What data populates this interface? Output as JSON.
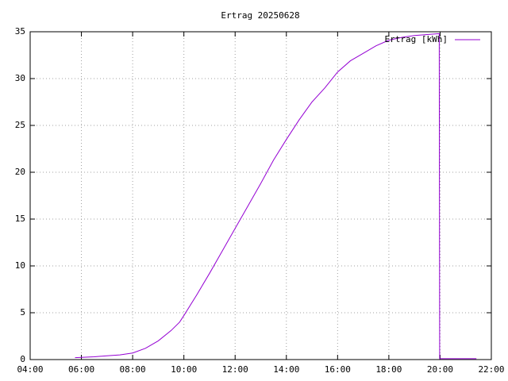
{
  "chart_data": {
    "type": "line",
    "title": "Ertrag 20250628",
    "x": [
      "05:45",
      "06:30",
      "07:00",
      "07:30",
      "08:00",
      "08:30",
      "09:00",
      "09:30",
      "09:50",
      "10:00",
      "10:30",
      "11:00",
      "11:30",
      "12:00",
      "12:30",
      "13:00",
      "13:30",
      "14:00",
      "14:30",
      "15:00",
      "15:30",
      "16:00",
      "16:30",
      "17:00",
      "17:30",
      "18:00",
      "18:30",
      "19:00",
      "19:30",
      "19:58",
      "19:59",
      "21:25"
    ],
    "series": [
      {
        "name": "Ertrag [kWh]",
        "color": "#9400d3",
        "values": [
          0.2,
          0.3,
          0.4,
          0.5,
          0.7,
          1.2,
          2.0,
          3.1,
          4.0,
          4.7,
          6.9,
          9.2,
          11.6,
          14.0,
          16.4,
          18.8,
          21.3,
          23.5,
          25.6,
          27.5,
          29.0,
          30.7,
          31.9,
          32.7,
          33.5,
          34.1,
          34.4,
          34.6,
          34.7,
          34.8,
          0.1,
          0.1
        ]
      }
    ],
    "xlim": [
      "04:00",
      "22:00"
    ],
    "xticks": [
      "04:00",
      "06:00",
      "08:00",
      "10:00",
      "12:00",
      "14:00",
      "16:00",
      "18:00",
      "20:00",
      "22:00"
    ],
    "ylim": [
      0,
      35
    ],
    "yticks": [
      0,
      5,
      10,
      15,
      20,
      25,
      30,
      35
    ],
    "grid": true,
    "legend": "top-right"
  }
}
